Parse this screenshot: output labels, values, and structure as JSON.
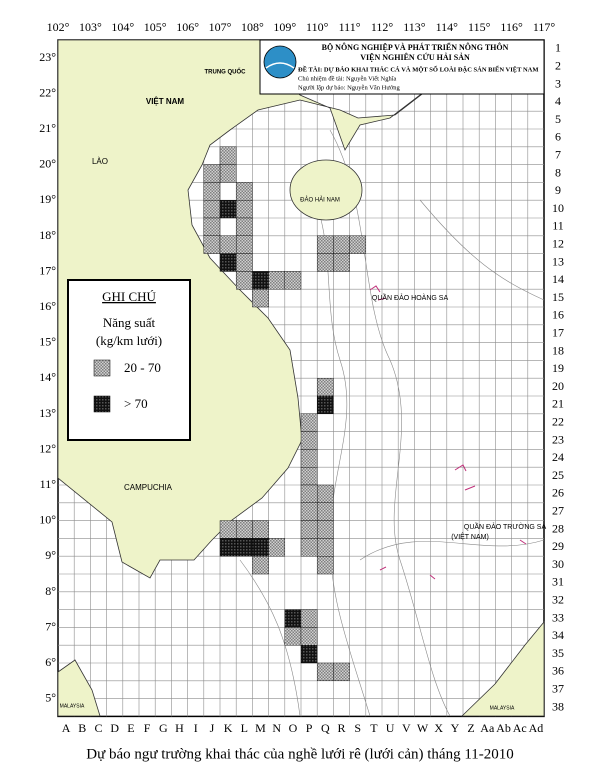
{
  "header": {
    "ministry": "BỘ NÔNG NGHIỆP VÀ PHÁT TRIỂN NÔNG THÔN",
    "institute": "VIỆN NGHIÊN CỨU HẢI SẢN",
    "project": "ĐỀ TÀI: DỰ BÁO KHAI THÁC CÁ VÀ MỘT SỐ LOÀI ĐẶC SẢN BIỂN VIỆT NAM",
    "lead": "Chủ nhiệm đề tài: Nguyễn Viết Nghĩa",
    "forecaster": "Người lập dự báo: Nguyễn Văn Hướng"
  },
  "axes": {
    "longitudes": [
      "102°",
      "103°",
      "104°",
      "105°",
      "106°",
      "107°",
      "108°",
      "109°",
      "110°",
      "111°",
      "112°",
      "113°",
      "114°",
      "115°",
      "116°",
      "117°"
    ],
    "latitudes": [
      "23°",
      "22°",
      "21°",
      "20°",
      "19°",
      "18°",
      "17°",
      "16°",
      "15°",
      "14°",
      "13°",
      "12°",
      "11°",
      "10°",
      "9°",
      "8°",
      "7°",
      "6°",
      "5°"
    ],
    "rows": [
      "1",
      "2",
      "3",
      "4",
      "5",
      "6",
      "7",
      "8",
      "9",
      "10",
      "11",
      "12",
      "13",
      "14",
      "15",
      "16",
      "17",
      "18",
      "19",
      "20",
      "21",
      "22",
      "23",
      "24",
      "25",
      "26",
      "27",
      "28",
      "29",
      "30",
      "31",
      "32",
      "33",
      "34",
      "35",
      "36",
      "37",
      "38"
    ],
    "columns": [
      "A",
      "B",
      "C",
      "D",
      "E",
      "F",
      "G",
      "H",
      "I",
      "J",
      "K",
      "L",
      "M",
      "N",
      "O",
      "P",
      "Q",
      "R",
      "S",
      "T",
      "U",
      "V",
      "W",
      "X",
      "Y",
      "Z",
      "Aa",
      "Ab",
      "Ac",
      "Ad"
    ]
  },
  "legend": {
    "title": "GHI CHÚ",
    "quantity": "Năng suất",
    "unit": "(kg/km lưới)",
    "items": [
      {
        "label": "20 - 70"
      },
      {
        "label": "> 70"
      }
    ]
  },
  "places": [
    "TRUNG QUỐC",
    "VIỆT NAM",
    "LÀO",
    "CAMPUCHIA",
    "ĐẢO HẢI NAM",
    "QUẦN ĐẢO HOÀNG SA",
    "QUẦN ĐẢO TRƯỜNG SA",
    "(VIỆT NAM)",
    "MALAYSIA",
    "MALAYSIA"
  ],
  "caption": "Dự báo ngư trường khai thác của nghề lưới rê (lưới cản) tháng 11-2010"
}
